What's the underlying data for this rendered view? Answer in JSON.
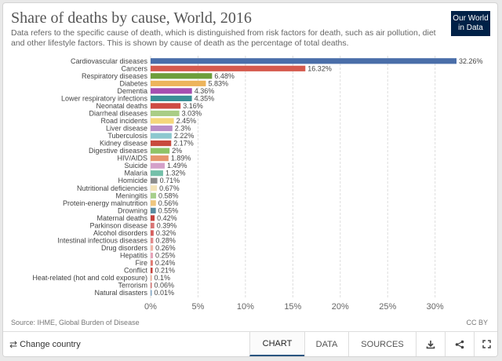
{
  "header": {
    "title": "Share of deaths by cause, World, 2016",
    "subtitle": "Data refers to the specific cause of death, which is distinguished from risk factors for death, such as air pollution, diet and other lifestyle factors. This is shown by cause of death as the percentage of total deaths.",
    "logo_line1": "Our World",
    "logo_line2": "in Data",
    "logo_color": "#002147"
  },
  "chart_data": {
    "type": "bar",
    "orientation": "horizontal",
    "title": "Share of deaths by cause, World, 2016",
    "xlim": [
      0,
      32.26
    ],
    "grid": true,
    "ticks": [
      {
        "v": 0,
        "label": "0%"
      },
      {
        "v": 5,
        "label": "5%"
      },
      {
        "v": 10,
        "label": "10%"
      },
      {
        "v": 15,
        "label": "15%"
      },
      {
        "v": 20,
        "label": "20%"
      },
      {
        "v": 25,
        "label": "25%"
      },
      {
        "v": 30,
        "label": "30%"
      }
    ],
    "bars": [
      {
        "label": "Cardiovascular diseases",
        "value": 32.26,
        "value_label": "32.26%",
        "color": "#4a6ea9"
      },
      {
        "label": "Cancers",
        "value": 16.32,
        "value_label": "16.32%",
        "color": "#d55a4d"
      },
      {
        "label": "Respiratory diseases",
        "value": 6.48,
        "value_label": "6.48%",
        "color": "#6d9e3c"
      },
      {
        "label": "Diabetes",
        "value": 5.83,
        "value_label": "5.83%",
        "color": "#edb45c"
      },
      {
        "label": "Dementia",
        "value": 4.36,
        "value_label": "4.36%",
        "color": "#a64eb0"
      },
      {
        "label": "Lower respiratory infections",
        "value": 4.35,
        "value_label": "4.35%",
        "color": "#3a8f96"
      },
      {
        "label": "Neonatal deaths",
        "value": 3.16,
        "value_label": "3.16%",
        "color": "#ce4a43"
      },
      {
        "label": "Diarrheal diseases",
        "value": 3.03,
        "value_label": "3.03%",
        "color": "#a9cd86"
      },
      {
        "label": "Road incidents",
        "value": 2.45,
        "value_label": "2.45%",
        "color": "#f4d77b"
      },
      {
        "label": "Liver disease",
        "value": 2.3,
        "value_label": "2.3%",
        "color": "#b98dc7"
      },
      {
        "label": "Tuberculosis",
        "value": 2.22,
        "value_label": "2.22%",
        "color": "#8cc8cf"
      },
      {
        "label": "Kidney disease",
        "value": 2.17,
        "value_label": "2.17%",
        "color": "#c84a3d"
      },
      {
        "label": "Digestive diseases",
        "value": 2,
        "value_label": "2%",
        "color": "#8ec466"
      },
      {
        "label": "HIV/AIDS",
        "value": 1.89,
        "value_label": "1.89%",
        "color": "#e6956c"
      },
      {
        "label": "Suicide",
        "value": 1.49,
        "value_label": "1.49%",
        "color": "#d4a0c9"
      },
      {
        "label": "Malaria",
        "value": 1.32,
        "value_label": "1.32%",
        "color": "#74c0a9"
      },
      {
        "label": "Homicide",
        "value": 0.71,
        "value_label": "0.71%",
        "color": "#8c8c8c"
      },
      {
        "label": "Nutritional deficiencies",
        "value": 0.67,
        "value_label": "0.67%",
        "color": "#f3e3b8"
      },
      {
        "label": "Meningitis",
        "value": 0.58,
        "value_label": "0.58%",
        "color": "#a7cf8c"
      },
      {
        "label": "Protein-energy malnutrition",
        "value": 0.56,
        "value_label": "0.56%",
        "color": "#eec67e"
      },
      {
        "label": "Drowning",
        "value": 0.55,
        "value_label": "0.55%",
        "color": "#5a8ca0"
      },
      {
        "label": "Maternal deaths",
        "value": 0.42,
        "value_label": "0.42%",
        "color": "#c7423d"
      },
      {
        "label": "Parkinson disease",
        "value": 0.39,
        "value_label": "0.39%",
        "color": "#d97474"
      },
      {
        "label": "Alcohol disorders",
        "value": 0.32,
        "value_label": "0.32%",
        "color": "#d6605f"
      },
      {
        "label": "Intestinal infectious diseases",
        "value": 0.28,
        "value_label": "0.28%",
        "color": "#e28a8a"
      },
      {
        "label": "Drug disorders",
        "value": 0.26,
        "value_label": "0.26%",
        "color": "#f0b5a6"
      },
      {
        "label": "Hepatitis",
        "value": 0.25,
        "value_label": "0.25%",
        "color": "#e7a2b8"
      },
      {
        "label": "Fire",
        "value": 0.24,
        "value_label": "0.24%",
        "color": "#e07a72"
      },
      {
        "label": "Conflict",
        "value": 0.21,
        "value_label": "0.21%",
        "color": "#c8463e"
      },
      {
        "label": "Heat-related (hot and cold exposure)",
        "value": 0.1,
        "value_label": "0.1%",
        "color": "#e8a48d"
      },
      {
        "label": "Terrorism",
        "value": 0.06,
        "value_label": "0.06%",
        "color": "#d07070"
      },
      {
        "label": "Natural disasters",
        "value": 0.01,
        "value_label": "0.01%",
        "color": "#7fa6c4"
      }
    ]
  },
  "footer": {
    "source": "Source: IHME, Global Burden of Disease",
    "license": "CC BY",
    "change_country": "Change country",
    "change_country_icon": "swap-arrows-icon",
    "tabs": {
      "chart": "CHART",
      "data": "DATA",
      "sources": "SOURCES"
    },
    "active_tab": "CHART",
    "accent_color": "#2a5580",
    "icons": [
      "download-icon",
      "share-icon",
      "fullscreen-icon"
    ]
  }
}
